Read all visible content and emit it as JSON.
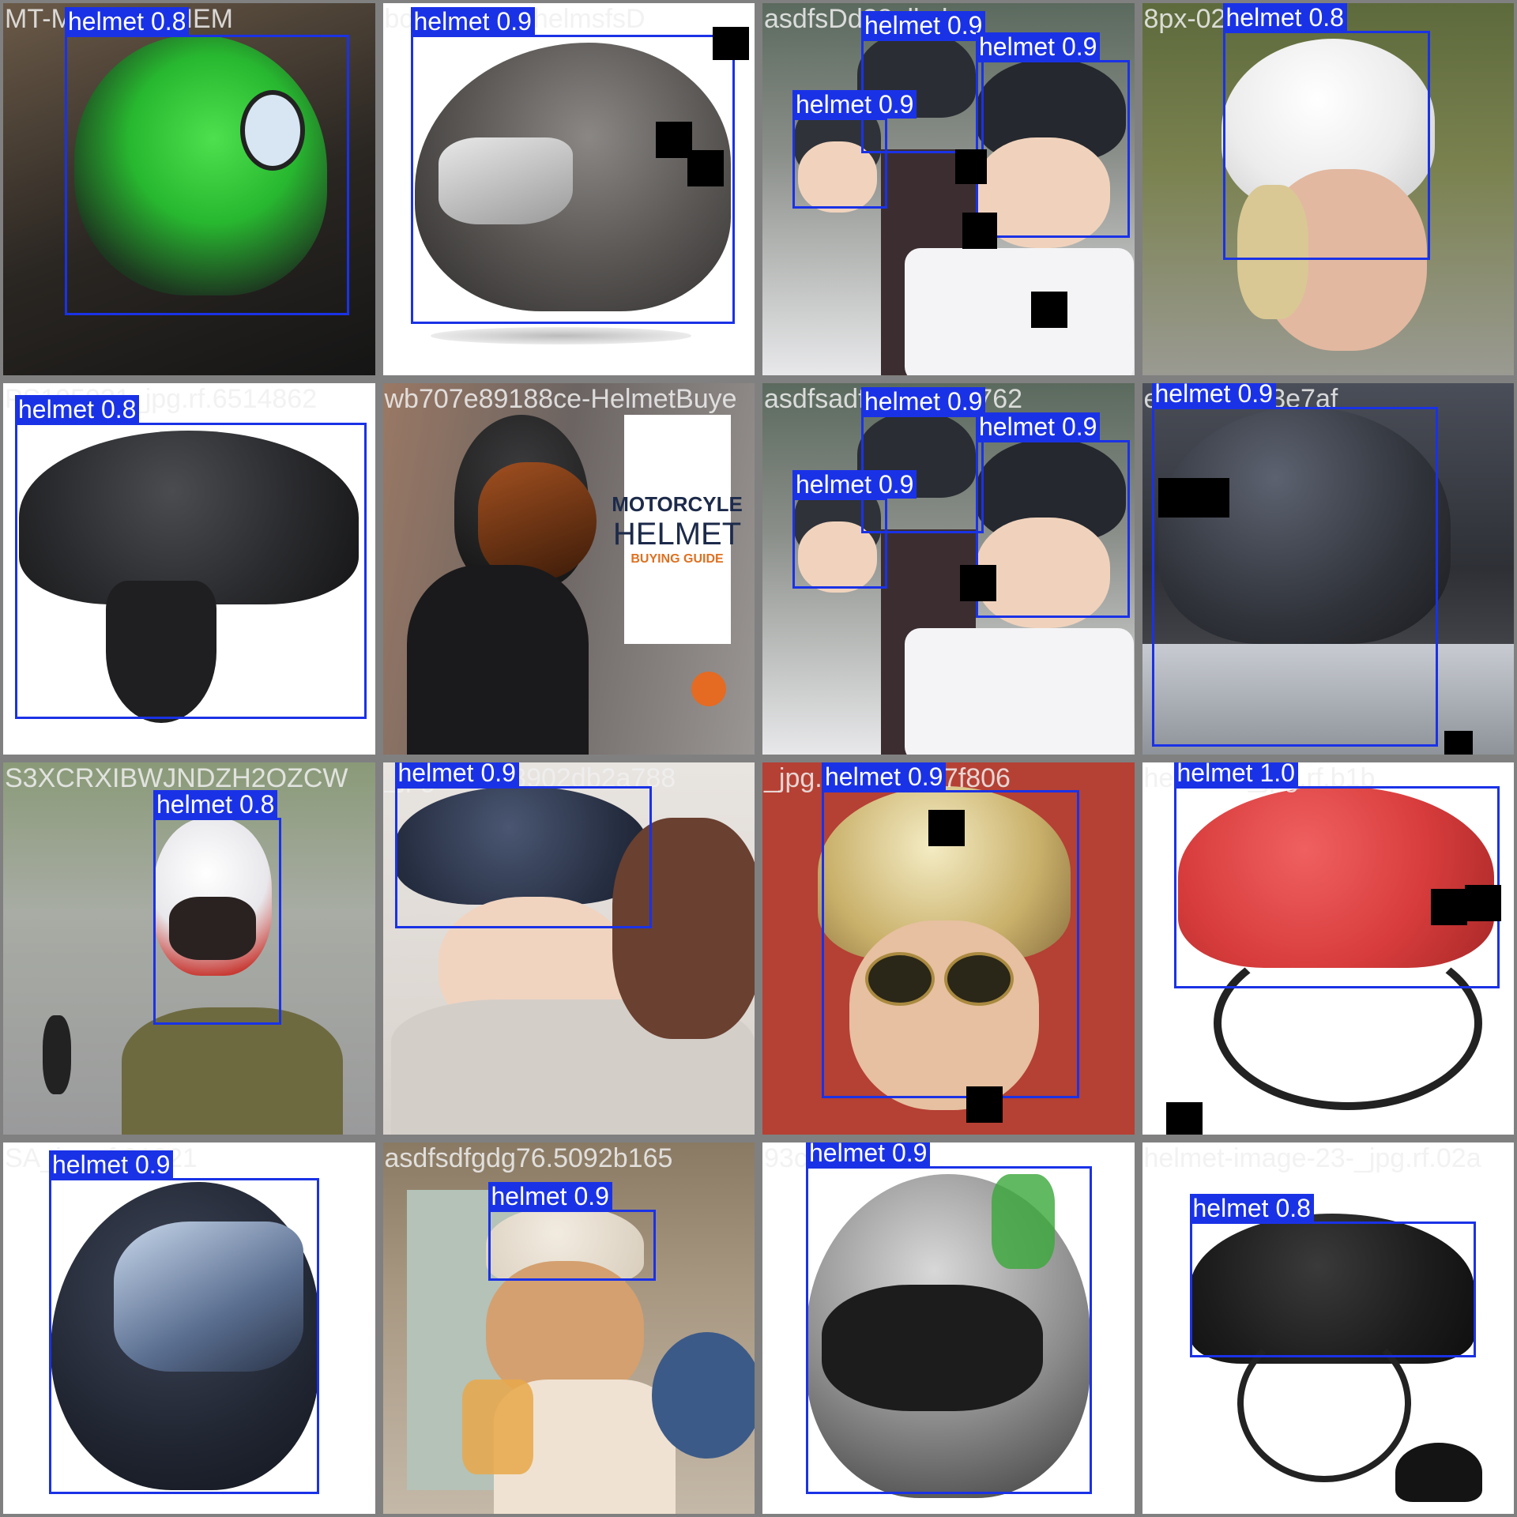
{
  "tiles": [
    {
      "filename": "MT-MELKOR-HEM",
      "boxes": [
        {
          "label": "helmet 0.8"
        }
      ]
    },
    {
      "filename": "bcef7ff82ad-helmsfsD",
      "boxes": [
        {
          "label": "helmet 0.9"
        }
      ]
    },
    {
      "filename": "asdfsDd28alkeh",
      "boxes": [
        {
          "label": "helmet 0.9"
        },
        {
          "label": "helmet 0.9"
        },
        {
          "label": "helmet 0.9"
        }
      ]
    },
    {
      "filename": "8px-0243-1",
      "boxes": [
        {
          "label": "helmet 0.8"
        }
      ]
    },
    {
      "filename": "PS195931_jpg.rf.6514862",
      "boxes": [
        {
          "label": "helmet 0.8"
        }
      ]
    },
    {
      "filename": "wb707e89188ce-HelmetBuye",
      "boxes": []
    },
    {
      "filename": "asdfsadf_jpg.rf.62762",
      "boxes": [
        {
          "label": "helmet 0.9"
        },
        {
          "label": "helmet 0.9"
        },
        {
          "label": "helmet 0.9"
        }
      ]
    },
    {
      "filename": "e4539fb3d3e7af",
      "boxes": [
        {
          "label": "helmet 0.9"
        }
      ]
    },
    {
      "filename": "S3XCRXIBWJNDZH2OZCW",
      "boxes": [
        {
          "label": "helmet 0.8"
        }
      ]
    },
    {
      "filename": "_jpg.rf.b0d3902db2a788",
      "boxes": [
        {
          "label": "helmet 0.9"
        }
      ]
    },
    {
      "filename": "_jpg.rf.17db7af7f806",
      "boxes": [
        {
          "label": "helmet 0.9"
        }
      ]
    },
    {
      "filename": "helmet-1_jpg.rf.b1b",
      "boxes": [
        {
          "label": "helmet 1.0"
        }
      ]
    },
    {
      "filename": "SA_jpg.rf.31821",
      "boxes": [
        {
          "label": "helmet 0.9"
        }
      ]
    },
    {
      "filename": "asdfsdfgdg76.5092b165",
      "boxes": [
        {
          "label": "helmet 0.9"
        }
      ]
    },
    {
      "filename": "93cd45d981",
      "boxes": [
        {
          "label": "helmet 0.9"
        }
      ]
    },
    {
      "filename": "helmet-image-23-_jpg.rf.02a",
      "boxes": [
        {
          "label": "helmet 0.8"
        }
      ]
    }
  ],
  "sign": {
    "line1": "MOTORCYLE",
    "line2": "HELMET",
    "line3": "BUYING GUIDE"
  },
  "colors": {
    "box": "#1a32e6",
    "border": "#808080"
  }
}
